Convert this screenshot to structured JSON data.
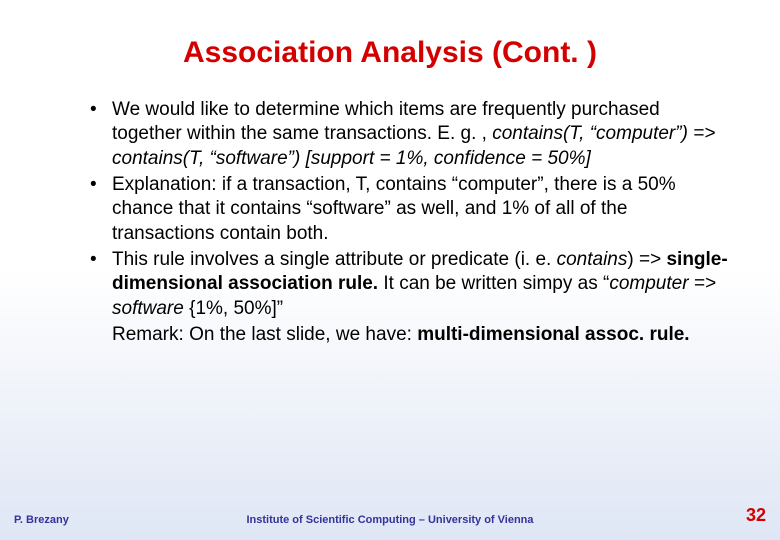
{
  "title": "Association Analysis (Cont. )",
  "bullets": [
    {
      "plain_a": "We would like to determine which items are frequently purchased together within the same transactions. E. g. , ",
      "italic_a": "contains(T, “computer”) => contains(T, “software”) [support = 1%, confidence = 50%]"
    },
    {
      "plain_a": "Explanation: if a transaction, T, contains “computer”, there is a 50% chance that it contains “software” as well, and 1% of all of the transactions contain both."
    },
    {
      "plain_a": "This rule involves a single attribute or predicate (i. e. ",
      "italic_a": "contains",
      "plain_b": ") => ",
      "bold_a": "single-dimensional association rule.",
      "plain_c": " It can be written simpy as “",
      "italic_b": "computer => software ",
      "plain_d": "{1%, 50%]”"
    }
  ],
  "remark_prefix": "Remark: On the last slide, we have: ",
  "remark_bold": "multi-dimensional assoc. rule.",
  "footer": {
    "left": "P. Brezany",
    "center": "Institute of Scientific Computing – University of Vienna",
    "page": "32"
  },
  "colors": {
    "title": "#d40000",
    "body": "#000000",
    "footer_text": "#333399",
    "page_number": "#d40000",
    "bg_top": "#ffffff",
    "bg_bottom": "#dfe6f5"
  },
  "fonts": {
    "family": "Comic Sans MS",
    "title_size_pt": 30,
    "body_size_pt": 19,
    "footer_size_pt": 11,
    "page_size_pt": 18
  }
}
